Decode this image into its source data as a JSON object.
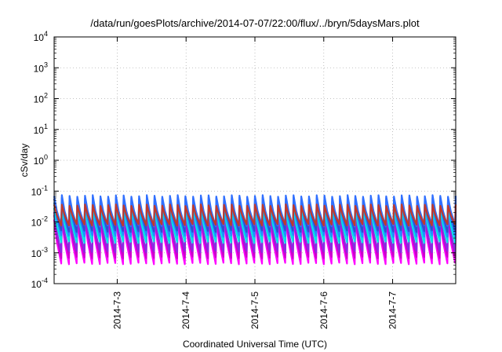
{
  "chart_data": {
    "type": "line",
    "title": "/data/run/goesPlots/archive/2014-07-07/22:00/flux/../bryn/5daysMars.plot",
    "xlabel": "Coordinated Universal Time (UTC)",
    "ylabel": "cSv/day",
    "yscale": "log",
    "ylim": [
      0.0001,
      10000
    ],
    "y_ticks": [
      {
        "base": "10",
        "exp": "-4"
      },
      {
        "base": "10",
        "exp": "-3"
      },
      {
        "base": "10",
        "exp": "-2"
      },
      {
        "base": "10",
        "exp": "-1"
      },
      {
        "base": "10",
        "exp": "0"
      },
      {
        "base": "10",
        "exp": "1"
      },
      {
        "base": "10",
        "exp": "2"
      },
      {
        "base": "10",
        "exp": "3"
      },
      {
        "base": "10",
        "exp": "4"
      }
    ],
    "x_ticks": [
      "2014-7-3",
      "2014-7-4",
      "2014-7-5",
      "2014-7-6",
      "2014-7-7"
    ],
    "xlim": [
      "2014-07-02 02:00",
      "2014-07-07 22:00"
    ],
    "grid": true,
    "oscillation": {
      "cycles": 52,
      "note_values_approx": true
    },
    "series": [
      {
        "color": "#ff00ff",
        "peak": 0.012,
        "trough": 0.00045
      },
      {
        "color": "#cc00cc",
        "peak": 0.016,
        "trough": 0.0007
      },
      {
        "color": "#8a2be2",
        "peak": 0.02,
        "trough": 0.0011
      },
      {
        "color": "#00e5e5",
        "peak": 0.028,
        "trough": 0.0022
      },
      {
        "color": "#1e90ff",
        "peak": 0.045,
        "trough": 0.0035
      },
      {
        "color": "#2f4fd0",
        "peak": 0.06,
        "trough": 0.005
      },
      {
        "color": "#3070ff",
        "peak": 0.07,
        "trough": 0.0075
      },
      {
        "color": "#c0392b",
        "peak": 0.035,
        "trough": 0.008
      }
    ]
  }
}
